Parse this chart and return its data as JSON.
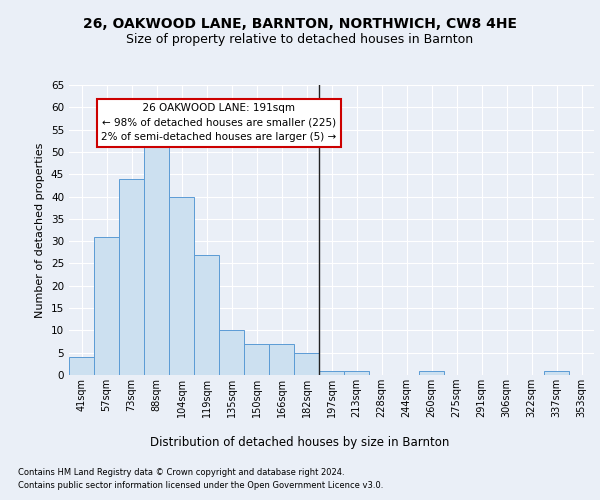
{
  "title_line1": "26, OAKWOOD LANE, BARNTON, NORTHWICH, CW8 4HE",
  "title_line2": "Size of property relative to detached houses in Barnton",
  "xlabel": "Distribution of detached houses by size in Barnton",
  "ylabel": "Number of detached properties",
  "footer_line1": "Contains HM Land Registry data © Crown copyright and database right 2024.",
  "footer_line2": "Contains public sector information licensed under the Open Government Licence v3.0.",
  "categories": [
    "41sqm",
    "57sqm",
    "73sqm",
    "88sqm",
    "104sqm",
    "119sqm",
    "135sqm",
    "150sqm",
    "166sqm",
    "182sqm",
    "197sqm",
    "213sqm",
    "228sqm",
    "244sqm",
    "260sqm",
    "275sqm",
    "291sqm",
    "306sqm",
    "322sqm",
    "337sqm",
    "353sqm"
  ],
  "values": [
    4,
    31,
    44,
    52,
    40,
    27,
    10,
    7,
    7,
    5,
    1,
    1,
    0,
    0,
    1,
    0,
    0,
    0,
    0,
    1,
    0
  ],
  "bar_color": "#cce0f0",
  "bar_edge_color": "#5b9bd5",
  "vline_pos": 9.5,
  "vline_label": "26 OAKWOOD LANE: 191sqm",
  "annotation_line2": "← 98% of detached houses are smaller (225)",
  "annotation_line3": "2% of semi-detached houses are larger (5) →",
  "annotation_box_color": "#ffffff",
  "annotation_box_edge_color": "#cc0000",
  "ylim": [
    0,
    65
  ],
  "yticks": [
    0,
    5,
    10,
    15,
    20,
    25,
    30,
    35,
    40,
    45,
    50,
    55,
    60,
    65
  ],
  "bg_color": "#eaeff7",
  "plot_bg_color": "#eaeff7",
  "grid_color": "#ffffff",
  "title_fontsize": 10,
  "subtitle_fontsize": 9
}
